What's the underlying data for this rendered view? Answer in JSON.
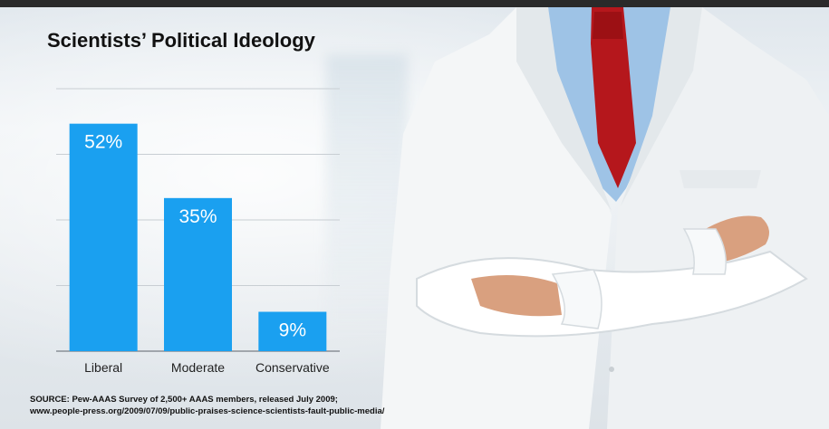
{
  "slide": {
    "title": "Scientists’ Political Ideology",
    "source_line1": "SOURCE: Pew-AAAS Survey of 2,500+ AAAS members, released July 2009;",
    "source_line2": "www.people-press.org/2009/07/09/public-praises-science-scientists-fault-public-media/"
  },
  "colors": {
    "bar": "#1aa0f0",
    "bar_label": "#ffffff",
    "grid": "#c8ced3",
    "axis": "#8a9096",
    "coat": "#f4f6f7",
    "shirt": "#9ec3e6",
    "tie": "#b5171c"
  },
  "chart_data": {
    "type": "bar",
    "title": "Scientists’ Political Ideology",
    "categories": [
      "Liberal",
      "Moderate",
      "Conservative"
    ],
    "values": [
      52,
      35,
      9
    ],
    "value_labels": [
      "52%",
      "35%",
      "9%"
    ],
    "xlabel": "",
    "ylabel": "",
    "ylim": [
      0,
      60
    ],
    "grid": true,
    "legend": "none"
  }
}
